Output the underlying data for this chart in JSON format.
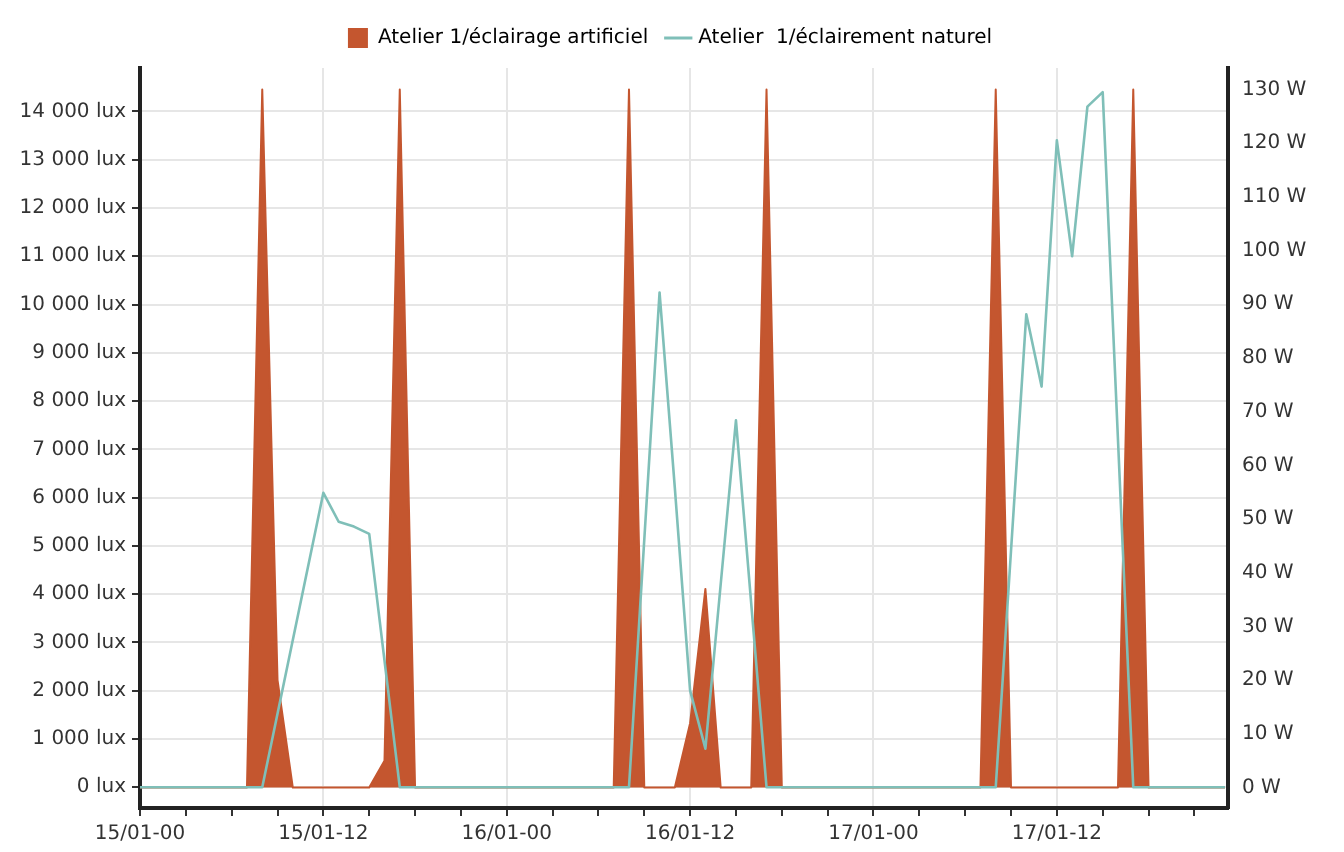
{
  "chart_data": {
    "type": "area",
    "legend": "top",
    "series": [
      {
        "name": "Atelier 1/éclairage artificiel",
        "axis": "y2",
        "color": "#c4562f",
        "x": [
          "--01-15T00:00",
          "--01-15T07:00",
          "--01-15T08:00",
          "--01-15T09:00",
          "--01-15T10:00",
          "--01-15T15:00",
          "--01-15T16:00",
          "--01-15T17:00",
          "--01-15T18:00",
          "--01-16T07:00",
          "--01-16T08:00",
          "--01-16T09:00",
          "--01-16T11:00",
          "--01-16T12:00",
          "--01-16T13:00",
          "--01-16T14:00",
          "--01-16T16:00",
          "--01-16T17:00",
          "--01-16T18:00",
          "--01-17T07:00",
          "--01-17T08:00",
          "--01-17T09:00",
          "--01-17T16:00",
          "--01-17T17:00",
          "--01-17T18:00",
          "--01-17T23:00"
        ],
        "values": [
          0,
          0,
          130,
          20,
          0,
          0,
          5,
          130,
          0,
          0,
          130,
          0,
          0,
          12,
          37,
          0,
          0,
          130,
          0,
          0,
          130,
          0,
          0,
          130,
          0,
          0
        ]
      },
      {
        "name": "Atelier  1/éclairement naturel",
        "type": "line",
        "axis": "y",
        "color": "#7fbfb8",
        "x": [
          "--01-15T00:00",
          "--01-15T08:00",
          "--01-15T12:00",
          "--01-15T13:00",
          "--01-15T14:00",
          "--01-15T15:00",
          "--01-15T17:00",
          "--01-16T08:00",
          "--01-16T10:00",
          "--01-16T11:00",
          "--01-16T12:00",
          "--01-16T13:00",
          "--01-16T14:00",
          "--01-16T15:00",
          "--01-16T17:00",
          "--01-17T08:00",
          "--01-17T09:00",
          "--01-17T10:00",
          "--01-17T11:00",
          "--01-17T12:00",
          "--01-17T13:00",
          "--01-17T14:00",
          "--01-17T15:00",
          "--01-17T17:00",
          "--01-17T23:00"
        ],
        "values": [
          0,
          0,
          6100,
          5500,
          5400,
          5250,
          0,
          0,
          10250,
          6200,
          2000,
          800,
          4200,
          7600,
          0,
          0,
          4900,
          9800,
          8300,
          13400,
          11000,
          14100,
          14400,
          0,
          0
        ]
      }
    ],
    "xlim": [
      "--01-15T00:00",
      "--01-17T23:12"
    ],
    "xticks": [
      {
        "value": "--01-15T00:00",
        "label": "15/01-00"
      },
      {
        "value": "--01-15T03:00",
        "label": null
      },
      {
        "value": "--01-15T06:00",
        "label": null
      },
      {
        "value": "--01-15T09:00",
        "label": null
      },
      {
        "value": "--01-15T12:00",
        "label": "15/01-12"
      },
      {
        "value": "--01-15T15:00",
        "label": null
      },
      {
        "value": "--01-15T18:00",
        "label": null
      },
      {
        "value": "--01-15T21:00",
        "label": null
      },
      {
        "value": "--01-16T00:00",
        "label": "16/01-00"
      },
      {
        "value": "--01-16T03:00",
        "label": null
      },
      {
        "value": "--01-16T06:00",
        "label": null
      },
      {
        "value": "--01-16T09:00",
        "label": null
      },
      {
        "value": "--01-16T12:00",
        "label": "16/01-12"
      },
      {
        "value": "--01-16T15:00",
        "label": null
      },
      {
        "value": "--01-16T18:00",
        "label": null
      },
      {
        "value": "--01-16T21:00",
        "label": null
      },
      {
        "value": "--01-17T00:00",
        "label": "17/01-00"
      },
      {
        "value": "--01-17T03:00",
        "label": null
      },
      {
        "value": "--01-17T06:00",
        "label": null
      },
      {
        "value": "--01-17T09:00",
        "label": null
      },
      {
        "value": "--01-17T12:00",
        "label": "17/01-12"
      },
      {
        "value": "--01-17T15:00",
        "label": null
      },
      {
        "value": "--01-17T18:00",
        "label": null
      },
      {
        "value": "--01-17T21:00",
        "label": null
      }
    ],
    "ylim": [
      -430,
      14900
    ],
    "yticks": [
      {
        "value": 0,
        "label": "0 lux"
      },
      {
        "value": 1000,
        "label": "1 000 lux"
      },
      {
        "value": 2000,
        "label": "2 000 lux"
      },
      {
        "value": 3000,
        "label": "3 000 lux"
      },
      {
        "value": 4000,
        "label": "4 000 lux"
      },
      {
        "value": 5000,
        "label": "5 000 lux"
      },
      {
        "value": 6000,
        "label": "6 000 lux"
      },
      {
        "value": 7000,
        "label": "7 000 lux"
      },
      {
        "value": 8000,
        "label": "8 000 lux"
      },
      {
        "value": 9000,
        "label": "9 000 lux"
      },
      {
        "value": 10000,
        "label": "10 000 lux"
      },
      {
        "value": 11000,
        "label": "11 000 lux"
      },
      {
        "value": 12000,
        "label": "12 000 lux"
      },
      {
        "value": 13000,
        "label": "13 000 lux"
      },
      {
        "value": 14000,
        "label": "14 000 lux"
      }
    ],
    "y2lim": [
      -3.8,
      134
    ],
    "y2ticks": [
      {
        "value": 0,
        "label": "0 W"
      },
      {
        "value": 10,
        "label": "10 W"
      },
      {
        "value": 20,
        "label": "20 W"
      },
      {
        "value": 30,
        "label": "30 W"
      },
      {
        "value": 40,
        "label": "40 W"
      },
      {
        "value": 50,
        "label": "50 W"
      },
      {
        "value": 60,
        "label": "60 W"
      },
      {
        "value": 70,
        "label": "70 W"
      },
      {
        "value": 80,
        "label": "80 W"
      },
      {
        "value": 90,
        "label": "90 W"
      },
      {
        "value": 100,
        "label": "100 W"
      },
      {
        "value": 110,
        "label": "110 W"
      },
      {
        "value": 120,
        "label": "120 W"
      },
      {
        "value": 130,
        "label": "130 W"
      }
    ],
    "grid": true
  }
}
